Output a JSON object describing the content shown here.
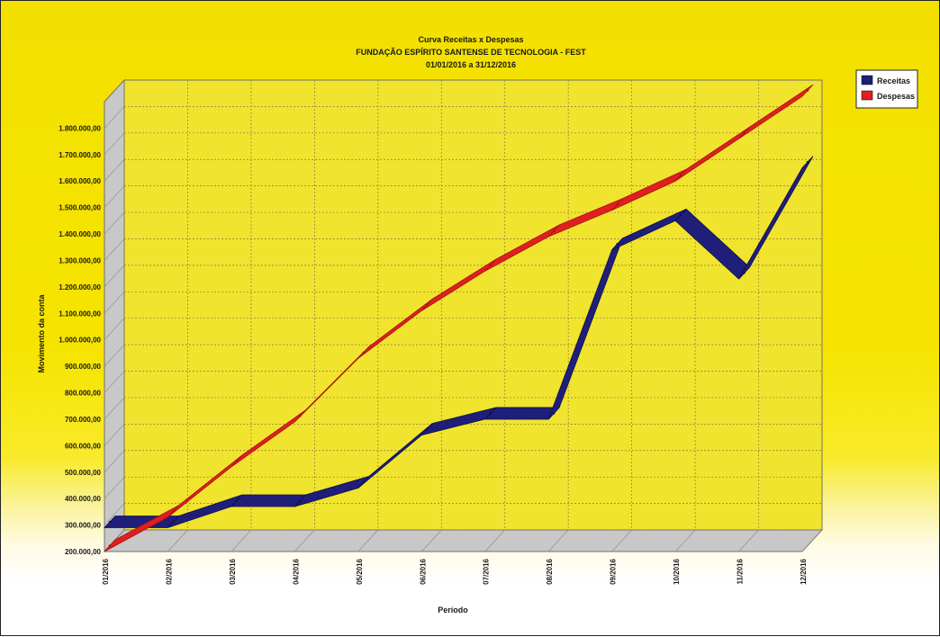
{
  "chart_data": {
    "type": "line",
    "title": "Curva Receitas x Despesas",
    "subtitle": "FUNDAÇÃO ESPÍRITO SANTENSE DE TECNOLOGIA - FEST",
    "period_text": "01/01/2016 a 31/12/2016",
    "xlabel": "Período",
    "ylabel": "Movimento da conta",
    "ylim": [
      200000,
      1900000
    ],
    "y_ticks": [
      "200.000,00",
      "300.000,00",
      "400.000,00",
      "500.000,00",
      "600.000,00",
      "700.000,00",
      "800.000,00",
      "900.000,00",
      "1.000.000,00",
      "1.100.000,00",
      "1.200.000,00",
      "1.300.000,00",
      "1.400.000,00",
      "1.500.000,00",
      "1.600.000,00",
      "1.700.000,00",
      "1.800.000,00"
    ],
    "categories": [
      "01/2016",
      "02/2016",
      "03/2016",
      "04/2016",
      "05/2016",
      "06/2016",
      "07/2016",
      "08/2016",
      "09/2016",
      "10/2016",
      "11/2016",
      "12/2016"
    ],
    "legend_position": "top-right",
    "grid": true,
    "series": [
      {
        "name": "Receitas",
        "color": "#1f1f7a",
        "values": [
          290000,
          290000,
          370000,
          370000,
          440000,
          640000,
          700000,
          700000,
          1340000,
          1450000,
          1230000,
          1650000
        ]
      },
      {
        "name": "Despesas",
        "color": "#e02020",
        "values": [
          200000,
          330000,
          520000,
          690000,
          930000,
          1110000,
          1260000,
          1390000,
          1490000,
          1600000,
          1760000,
          1920000
        ]
      }
    ]
  }
}
